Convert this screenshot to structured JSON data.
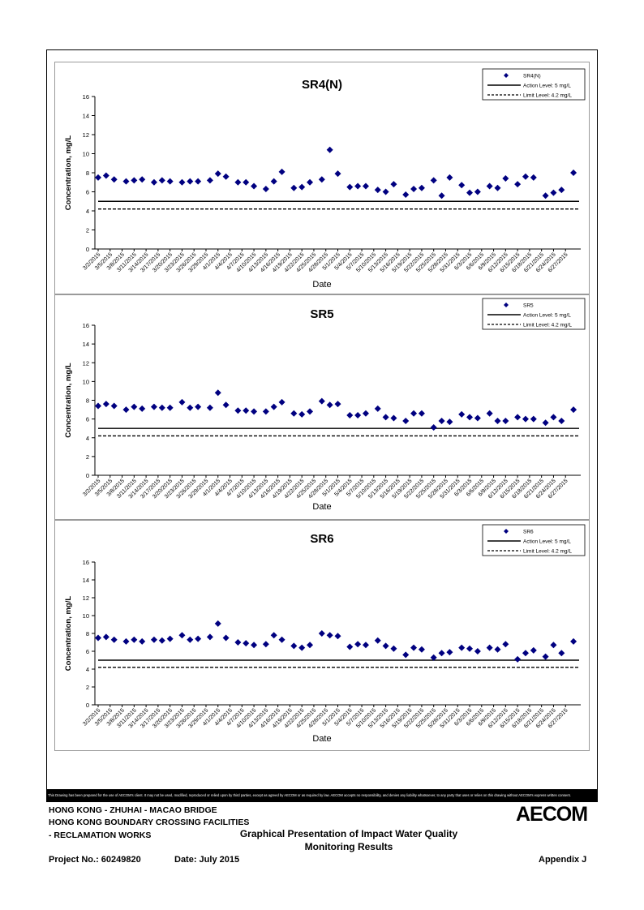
{
  "charts": [
    {
      "title": "SR4(N)",
      "legend": {
        "series": "SR4(N)",
        "action": "Action Level: 5 mg/L",
        "limit": "Limit Level: 4.2 mg/L"
      }
    },
    {
      "title": "SR5",
      "legend": {
        "series": "SR5",
        "action": "Action Level: 5 mg/L",
        "limit": "Limit Level: 4.2 mg/L"
      }
    },
    {
      "title": "SR6",
      "legend": {
        "series": "SR6",
        "action": "Action Level: 5 mg/L",
        "limit": "Limit Level: 4.2 mg/L"
      }
    }
  ],
  "chart_data": [
    {
      "type": "scatter",
      "title": "SR4(N)",
      "xlabel": "Date",
      "ylabel": "Concentration, mg/L",
      "ylim": [
        0,
        16
      ],
      "yticks": [
        0,
        2,
        4,
        6,
        8,
        10,
        12,
        14,
        16
      ],
      "xlim": [
        "3/2/2015",
        "6/30/2015"
      ],
      "xticks": [
        "3/2/2015",
        "3/5/2015",
        "3/8/2015",
        "3/11/2015",
        "3/14/2015",
        "3/17/2015",
        "3/20/2015",
        "3/23/2015",
        "3/26/2015",
        "3/29/2015",
        "4/1/2015",
        "4/4/2015",
        "4/7/2015",
        "4/10/2015",
        "4/13/2015",
        "4/16/2015",
        "4/19/2015",
        "4/22/2015",
        "4/25/2015",
        "4/28/2015",
        "5/1/2015",
        "5/4/2015",
        "5/7/2015",
        "5/10/2015",
        "5/13/2015",
        "5/16/2015",
        "5/19/2015",
        "5/22/2015",
        "5/25/2015",
        "5/28/2015",
        "5/31/2015",
        "6/3/2015",
        "6/6/2015",
        "6/9/2015",
        "6/12/2015",
        "6/15/2015",
        "6/18/2015",
        "6/21/2015",
        "6/24/2015",
        "6/27/2015"
      ],
      "grid": false,
      "legend_position": "top-right",
      "series": [
        {
          "name": "SR4(N)",
          "marker": "diamond",
          "color": "#000080",
          "points": [
            [
              "3/2/2015",
              7.5
            ],
            [
              "3/4/2015",
              7.7
            ],
            [
              "3/6/2015",
              7.3
            ],
            [
              "3/9/2015",
              7.1
            ],
            [
              "3/11/2015",
              7.2
            ],
            [
              "3/13/2015",
              7.3
            ],
            [
              "3/16/2015",
              7.0
            ],
            [
              "3/18/2015",
              7.2
            ],
            [
              "3/20/2015",
              7.1
            ],
            [
              "3/23/2015",
              7.0
            ],
            [
              "3/25/2015",
              7.1
            ],
            [
              "3/27/2015",
              7.1
            ],
            [
              "3/30/2015",
              7.2
            ],
            [
              "4/1/2015",
              7.9
            ],
            [
              "4/3/2015",
              7.6
            ],
            [
              "4/6/2015",
              7.0
            ],
            [
              "4/8/2015",
              7.0
            ],
            [
              "4/10/2015",
              6.6
            ],
            [
              "4/13/2015",
              6.3
            ],
            [
              "4/15/2015",
              7.1
            ],
            [
              "4/17/2015",
              8.1
            ],
            [
              "4/20/2015",
              6.4
            ],
            [
              "4/22/2015",
              6.5
            ],
            [
              "4/24/2015",
              7.0
            ],
            [
              "4/27/2015",
              7.3
            ],
            [
              "4/29/2015",
              10.4
            ],
            [
              "5/1/2015",
              7.9
            ],
            [
              "5/4/2015",
              6.5
            ],
            [
              "5/6/2015",
              6.6
            ],
            [
              "5/8/2015",
              6.6
            ],
            [
              "5/11/2015",
              6.2
            ],
            [
              "5/13/2015",
              6.0
            ],
            [
              "5/15/2015",
              6.8
            ],
            [
              "5/18/2015",
              5.7
            ],
            [
              "5/20/2015",
              6.3
            ],
            [
              "5/22/2015",
              6.4
            ],
            [
              "5/25/2015",
              7.2
            ],
            [
              "5/27/2015",
              5.6
            ],
            [
              "5/29/2015",
              7.5
            ],
            [
              "6/1/2015",
              6.7
            ],
            [
              "6/3/2015",
              5.9
            ],
            [
              "6/5/2015",
              6.0
            ],
            [
              "6/8/2015",
              6.6
            ],
            [
              "6/10/2015",
              6.4
            ],
            [
              "6/12/2015",
              7.4
            ],
            [
              "6/15/2015",
              6.8
            ],
            [
              "6/17/2015",
              7.6
            ],
            [
              "6/19/2015",
              7.5
            ],
            [
              "6/22/2015",
              5.6
            ],
            [
              "6/24/2015",
              5.9
            ],
            [
              "6/26/2015",
              6.2
            ],
            [
              "6/29/2015",
              8.0
            ]
          ]
        },
        {
          "name": "Action Level: 5 mg/L",
          "style": "solid",
          "color": "#000000",
          "y": 5
        },
        {
          "name": "Limit Level: 4.2 mg/L",
          "style": "dashed",
          "color": "#000000",
          "y": 4.2
        }
      ]
    },
    {
      "type": "scatter",
      "title": "SR5",
      "xlabel": "Date",
      "ylabel": "Concentration, mg/L",
      "ylim": [
        0,
        16
      ],
      "yticks": [
        0,
        2,
        4,
        6,
        8,
        10,
        12,
        14,
        16
      ],
      "xlim": [
        "3/2/2015",
        "6/30/2015"
      ],
      "xticks": [
        "3/2/2015",
        "3/5/2015",
        "3/8/2015",
        "3/11/2015",
        "3/14/2015",
        "3/17/2015",
        "3/20/2015",
        "3/23/2015",
        "3/26/2015",
        "3/29/2015",
        "4/1/2015",
        "4/4/2015",
        "4/7/2015",
        "4/10/2015",
        "4/13/2015",
        "4/16/2015",
        "4/19/2015",
        "4/22/2015",
        "4/25/2015",
        "4/28/2015",
        "5/1/2015",
        "5/4/2015",
        "5/7/2015",
        "5/10/2015",
        "5/13/2015",
        "5/16/2015",
        "5/19/2015",
        "5/22/2015",
        "5/25/2015",
        "5/28/2015",
        "5/31/2015",
        "6/3/2015",
        "6/6/2015",
        "6/9/2015",
        "6/12/2015",
        "6/15/2015",
        "6/18/2015",
        "6/21/2015",
        "6/24/2015",
        "6/27/2015"
      ],
      "grid": false,
      "legend_position": "top-right",
      "series": [
        {
          "name": "SR5",
          "marker": "diamond",
          "color": "#000080",
          "points": [
            [
              "3/2/2015",
              7.4
            ],
            [
              "3/4/2015",
              7.6
            ],
            [
              "3/6/2015",
              7.4
            ],
            [
              "3/9/2015",
              7.0
            ],
            [
              "3/11/2015",
              7.3
            ],
            [
              "3/13/2015",
              7.1
            ],
            [
              "3/16/2015",
              7.3
            ],
            [
              "3/18/2015",
              7.2
            ],
            [
              "3/20/2015",
              7.2
            ],
            [
              "3/23/2015",
              7.8
            ],
            [
              "3/25/2015",
              7.2
            ],
            [
              "3/27/2015",
              7.3
            ],
            [
              "3/30/2015",
              7.2
            ],
            [
              "4/1/2015",
              8.8
            ],
            [
              "4/3/2015",
              7.5
            ],
            [
              "4/6/2015",
              6.9
            ],
            [
              "4/8/2015",
              6.9
            ],
            [
              "4/10/2015",
              6.8
            ],
            [
              "4/13/2015",
              6.8
            ],
            [
              "4/15/2015",
              7.3
            ],
            [
              "4/17/2015",
              7.8
            ],
            [
              "4/20/2015",
              6.6
            ],
            [
              "4/22/2015",
              6.5
            ],
            [
              "4/24/2015",
              6.8
            ],
            [
              "4/27/2015",
              7.9
            ],
            [
              "4/29/2015",
              7.5
            ],
            [
              "5/1/2015",
              7.6
            ],
            [
              "5/4/2015",
              6.4
            ],
            [
              "5/6/2015",
              6.4
            ],
            [
              "5/8/2015",
              6.6
            ],
            [
              "5/11/2015",
              7.1
            ],
            [
              "5/13/2015",
              6.2
            ],
            [
              "5/15/2015",
              6.1
            ],
            [
              "5/18/2015",
              5.8
            ],
            [
              "5/20/2015",
              6.6
            ],
            [
              "5/22/2015",
              6.6
            ],
            [
              "5/25/2015",
              5.1
            ],
            [
              "5/27/2015",
              5.8
            ],
            [
              "5/29/2015",
              5.7
            ],
            [
              "6/1/2015",
              6.5
            ],
            [
              "6/3/2015",
              6.2
            ],
            [
              "6/5/2015",
              6.1
            ],
            [
              "6/8/2015",
              6.6
            ],
            [
              "6/10/2015",
              5.8
            ],
            [
              "6/12/2015",
              5.8
            ],
            [
              "6/15/2015",
              6.2
            ],
            [
              "6/17/2015",
              6.0
            ],
            [
              "6/19/2015",
              6.0
            ],
            [
              "6/22/2015",
              5.6
            ],
            [
              "6/24/2015",
              6.2
            ],
            [
              "6/26/2015",
              5.8
            ],
            [
              "6/29/2015",
              7.0
            ]
          ]
        },
        {
          "name": "Action Level: 5 mg/L",
          "style": "solid",
          "color": "#000000",
          "y": 5
        },
        {
          "name": "Limit Level: 4.2 mg/L",
          "style": "dashed",
          "color": "#000000",
          "y": 4.2
        }
      ]
    },
    {
      "type": "scatter",
      "title": "SR6",
      "xlabel": "Date",
      "ylabel": "Concentration, mg/L",
      "ylim": [
        0,
        16
      ],
      "yticks": [
        0,
        2,
        4,
        6,
        8,
        10,
        12,
        14,
        16
      ],
      "xlim": [
        "3/2/2015",
        "6/30/2015"
      ],
      "xticks": [
        "3/2/2015",
        "3/5/2015",
        "3/8/2015",
        "3/11/2015",
        "3/14/2015",
        "3/17/2015",
        "3/20/2015",
        "3/23/2015",
        "3/26/2015",
        "3/29/2015",
        "4/1/2015",
        "4/4/2015",
        "4/7/2015",
        "4/10/2015",
        "4/13/2015",
        "4/16/2015",
        "4/19/2015",
        "4/22/2015",
        "4/25/2015",
        "4/28/2015",
        "5/1/2015",
        "5/4/2015",
        "5/7/2015",
        "5/10/2015",
        "5/13/2015",
        "5/16/2015",
        "5/19/2015",
        "5/22/2015",
        "5/25/2015",
        "5/28/2015",
        "5/31/2015",
        "6/3/2015",
        "6/6/2015",
        "6/9/2015",
        "6/12/2015",
        "6/15/2015",
        "6/18/2015",
        "6/21/2015",
        "6/24/2015",
        "6/27/2015"
      ],
      "grid": false,
      "legend_position": "top-right",
      "series": [
        {
          "name": "SR6",
          "marker": "diamond",
          "color": "#000080",
          "points": [
            [
              "3/2/2015",
              7.5
            ],
            [
              "3/4/2015",
              7.6
            ],
            [
              "3/6/2015",
              7.3
            ],
            [
              "3/9/2015",
              7.1
            ],
            [
              "3/11/2015",
              7.3
            ],
            [
              "3/13/2015",
              7.1
            ],
            [
              "3/16/2015",
              7.3
            ],
            [
              "3/18/2015",
              7.2
            ],
            [
              "3/20/2015",
              7.4
            ],
            [
              "3/23/2015",
              7.8
            ],
            [
              "3/25/2015",
              7.3
            ],
            [
              "3/27/2015",
              7.4
            ],
            [
              "3/30/2015",
              7.6
            ],
            [
              "4/1/2015",
              9.1
            ],
            [
              "4/3/2015",
              7.5
            ],
            [
              "4/6/2015",
              7.0
            ],
            [
              "4/8/2015",
              6.9
            ],
            [
              "4/10/2015",
              6.7
            ],
            [
              "4/13/2015",
              6.8
            ],
            [
              "4/15/2015",
              7.8
            ],
            [
              "4/17/2015",
              7.3
            ],
            [
              "4/20/2015",
              6.6
            ],
            [
              "4/22/2015",
              6.4
            ],
            [
              "4/24/2015",
              6.7
            ],
            [
              "4/27/2015",
              8.0
            ],
            [
              "4/29/2015",
              7.8
            ],
            [
              "5/1/2015",
              7.7
            ],
            [
              "5/4/2015",
              6.5
            ],
            [
              "5/6/2015",
              6.8
            ],
            [
              "5/8/2015",
              6.7
            ],
            [
              "5/11/2015",
              7.2
            ],
            [
              "5/13/2015",
              6.6
            ],
            [
              "5/15/2015",
              6.3
            ],
            [
              "5/18/2015",
              5.6
            ],
            [
              "5/20/2015",
              6.4
            ],
            [
              "5/22/2015",
              6.2
            ],
            [
              "5/25/2015",
              5.3
            ],
            [
              "5/27/2015",
              5.8
            ],
            [
              "5/29/2015",
              5.9
            ],
            [
              "6/1/2015",
              6.4
            ],
            [
              "6/3/2015",
              6.3
            ],
            [
              "6/5/2015",
              6.0
            ],
            [
              "6/8/2015",
              6.4
            ],
            [
              "6/10/2015",
              6.2
            ],
            [
              "6/12/2015",
              6.8
            ],
            [
              "6/15/2015",
              5.1
            ],
            [
              "6/17/2015",
              5.8
            ],
            [
              "6/19/2015",
              6.1
            ],
            [
              "6/22/2015",
              5.4
            ],
            [
              "6/24/2015",
              6.7
            ],
            [
              "6/26/2015",
              5.8
            ],
            [
              "6/29/2015",
              7.1
            ]
          ]
        },
        {
          "name": "Action Level: 5 mg/L",
          "style": "solid",
          "color": "#000000",
          "y": 5
        },
        {
          "name": "Limit Level: 4.2 mg/L",
          "style": "dashed",
          "color": "#000000",
          "y": 4.2
        }
      ]
    }
  ],
  "disclaimer": "This Drawing has been prepared for the use of AECOM's client. It may not be used, modified, reproduced or relied upon by third parties, except as agreed by AECOM or as required by law. AECOM accepts no responsibility, and denies any liability whatsoever, to any party that uses or relies on this drawing without AECOM's express written consent.",
  "title_block": {
    "project_line1": "HONG KONG - ZHUHAI - MACAO BRIDGE",
    "project_line2": "HONG KONG BOUNDARY CROSSING FACILITIES",
    "project_line3": "- RECLAMATION WORKS",
    "drawing_title_line1": "Graphical Presentation of Impact Water Quality",
    "drawing_title_line2": "Monitoring Results",
    "project_no": "Project No.: 60249820",
    "date": "Date: July 2015",
    "appendix": "Appendix J",
    "logo": "AECOM"
  }
}
